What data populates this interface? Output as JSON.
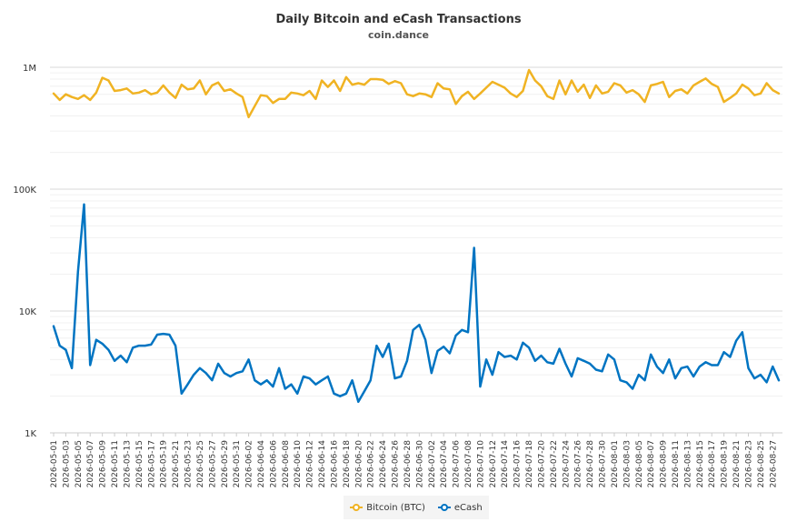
{
  "chart_data": {
    "type": "line",
    "title": "Daily Bitcoin and eCash Transactions",
    "subtitle": "coin.dance",
    "y_scale": "log",
    "ylim": [
      1000,
      1000000
    ],
    "y_ticks": [
      {
        "value": 1000,
        "label": "1K"
      },
      {
        "value": 10000,
        "label": "10K"
      },
      {
        "value": 100000,
        "label": "100K"
      },
      {
        "value": 1000000,
        "label": "1M"
      }
    ],
    "x_start": "2026-05-01",
    "x_end": "2026-08-28",
    "x_tick_labels": [
      "2026-05-01",
      "2026-05-03",
      "2026-05-05",
      "2026-05-07",
      "2026-05-09",
      "2026-05-11",
      "2026-05-13",
      "2026-05-15",
      "2026-05-17",
      "2026-05-19",
      "2026-05-21",
      "2026-05-23",
      "2026-05-25",
      "2026-05-27",
      "2026-05-29",
      "2026-05-31",
      "2026-06-02",
      "2026-06-04",
      "2026-06-06",
      "2026-06-08",
      "2026-06-10",
      "2026-06-12",
      "2026-06-14",
      "2026-06-16",
      "2026-06-18",
      "2026-06-20",
      "2026-06-22",
      "2026-06-24",
      "2026-06-26",
      "2026-06-28",
      "2026-06-30",
      "2026-07-02",
      "2026-07-04",
      "2026-07-06",
      "2026-07-08",
      "2026-07-10",
      "2026-07-12",
      "2026-07-14",
      "2026-07-16",
      "2026-07-18",
      "2026-07-20",
      "2026-07-22",
      "2026-07-24",
      "2026-07-26",
      "2026-07-28",
      "2026-07-30",
      "2026-08-01",
      "2026-08-03",
      "2026-08-05",
      "2026-08-07",
      "2026-08-09",
      "2026-08-11",
      "2026-08-13",
      "2026-08-15",
      "2026-08-17",
      "2026-08-19",
      "2026-08-21",
      "2026-08-23",
      "2026-08-25",
      "2026-08-27"
    ],
    "grid": true,
    "legend_position": "bottom-center",
    "series": [
      {
        "name": "Bitcoin (BTC)",
        "color": "#f0b323",
        "values": [
          610000,
          540000,
          600000,
          570000,
          550000,
          590000,
          540000,
          620000,
          820000,
          780000,
          640000,
          650000,
          670000,
          610000,
          620000,
          650000,
          600000,
          620000,
          710000,
          620000,
          560000,
          720000,
          660000,
          670000,
          780000,
          600000,
          710000,
          750000,
          640000,
          660000,
          610000,
          570000,
          390000,
          480000,
          590000,
          580000,
          510000,
          550000,
          550000,
          620000,
          610000,
          590000,
          640000,
          550000,
          780000,
          690000,
          780000,
          640000,
          830000,
          720000,
          740000,
          720000,
          800000,
          800000,
          790000,
          730000,
          770000,
          740000,
          600000,
          580000,
          610000,
          600000,
          570000,
          740000,
          670000,
          660000,
          500000,
          580000,
          630000,
          550000,
          610000,
          680000,
          760000,
          720000,
          680000,
          610000,
          570000,
          640000,
          950000,
          780000,
          700000,
          580000,
          550000,
          780000,
          600000,
          780000,
          630000,
          720000,
          560000,
          710000,
          610000,
          630000,
          740000,
          710000,
          620000,
          650000,
          600000,
          520000,
          710000,
          730000,
          760000,
          570000,
          640000,
          660000,
          610000,
          710000,
          760000,
          810000,
          730000,
          690000,
          520000,
          560000,
          610000,
          720000,
          670000,
          590000,
          610000,
          740000,
          650000,
          610000
        ],
        "markers": "none"
      },
      {
        "name": "eCash",
        "color": "#0074c2",
        "values": [
          7500,
          5200,
          4800,
          3400,
          21000,
          75000,
          3600,
          5800,
          5400,
          4800,
          3900,
          4300,
          3800,
          5000,
          5200,
          5200,
          5300,
          6400,
          6500,
          6400,
          5200,
          2100,
          2500,
          3000,
          3400,
          3100,
          2700,
          3700,
          3100,
          2900,
          3100,
          3200,
          4000,
          2700,
          2500,
          2700,
          2400,
          3400,
          2300,
          2500,
          2100,
          2900,
          2800,
          2500,
          2700,
          2900,
          2100,
          2000,
          2100,
          2700,
          1800,
          2200,
          2700,
          5200,
          4200,
          5400,
          2800,
          2900,
          3900,
          7000,
          7700,
          5800,
          3100,
          4700,
          5100,
          4500,
          6300,
          7000,
          6700,
          33000,
          2400,
          4000,
          3000,
          4600,
          4200,
          4300,
          4000,
          5500,
          5000,
          3900,
          4300,
          3800,
          3700,
          4900,
          3700,
          2900,
          4100,
          3900,
          3700,
          3300,
          3200,
          4400,
          4000,
          2700,
          2600,
          2300,
          3000,
          2700,
          4400,
          3500,
          3100,
          4000,
          2800,
          3400,
          3500,
          2900,
          3500,
          3800,
          3600,
          3600,
          4600,
          4200,
          5700,
          6700,
          3400,
          2800,
          3000,
          2600,
          3500,
          2700
        ],
        "markers": "none"
      }
    ]
  }
}
